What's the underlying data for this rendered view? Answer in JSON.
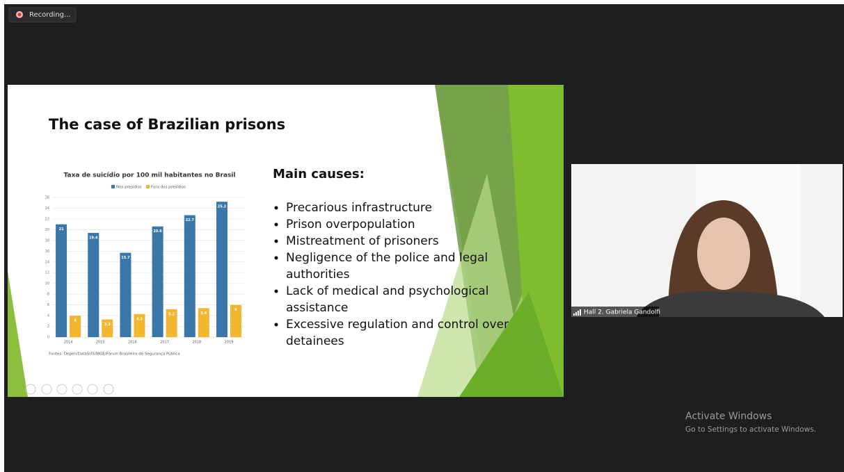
{
  "recording": "Recording...",
  "slide": {
    "title": "The case of Brazilian prisons",
    "causes_heading": "Main causes:",
    "causes": [
      [
        "Precarious infrastructure"
      ],
      [
        "Prison overpopulation"
      ],
      [
        "Mistreatment of prisoners"
      ],
      [
        "Negligence of the police and legal",
        "authorities"
      ],
      [
        "Lack of medical and psychological",
        "assistance"
      ],
      [
        "Excessive regulation and control over",
        "detainees"
      ]
    ]
  },
  "chart_data": {
    "type": "bar",
    "title": "Taxa de suicídio por 100 mil habitantes no Brasil",
    "categories": [
      "2014",
      "2015",
      "2016",
      "2017",
      "2018",
      "2019"
    ],
    "series": [
      {
        "name": "Nos presídios",
        "color": "#3a77a8",
        "values": [
          21,
          19.4,
          15.7,
          20.6,
          22.7,
          25.2
        ]
      },
      {
        "name": "Fora dos presídios",
        "color": "#f2b631",
        "values": [
          4,
          3.3,
          4.3,
          5.2,
          5.4,
          6
        ]
      }
    ],
    "ylim": [
      0,
      26
    ],
    "yticks": [
      0,
      2,
      4,
      6,
      8,
      10,
      12,
      14,
      16,
      18,
      20,
      22,
      24,
      26
    ],
    "grid": true,
    "source": "Fontes: Depen/DataSUS/IBGE/Fórum Brasileiro de Segurança Pública"
  },
  "participant": "Hall 2. Gabriela Gandolfi",
  "watermark": {
    "title": "Activate Windows",
    "subtitle": "Go to Settings to activate Windows."
  }
}
